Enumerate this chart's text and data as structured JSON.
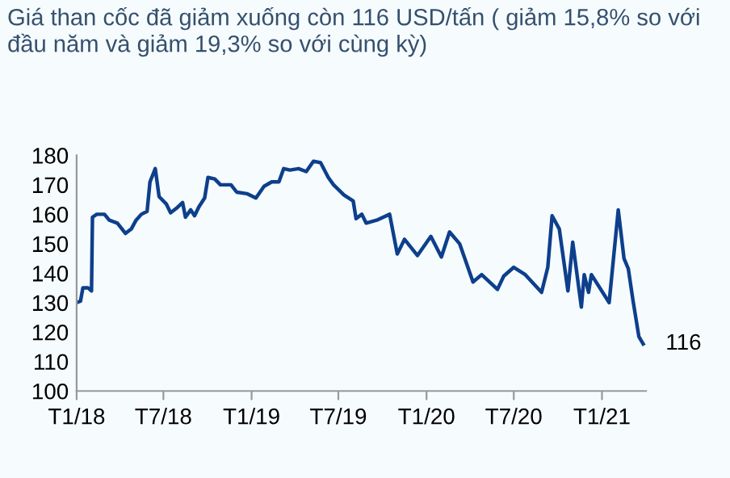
{
  "chart_data": {
    "type": "line",
    "title": "Giá than cốc đã giảm xuống còn 116 USD/tấn ( giảm 15,8% so với đầu năm và giảm 19,3% so với cùng kỳ)",
    "series": [
      {
        "color": "#0d3f8c",
        "x": [
          "2018-01-01",
          "2018-01-09",
          "2018-01-14",
          "2018-01-25",
          "2018-02-01",
          "2018-02-03",
          "2018-02-12",
          "2018-02-28",
          "2018-03-10",
          "2018-03-27",
          "2018-04-13",
          "2018-04-25",
          "2018-05-05",
          "2018-05-16",
          "2018-05-28",
          "2018-06-03",
          "2018-06-14",
          "2018-06-22",
          "2018-07-07",
          "2018-07-16",
          "2018-07-28",
          "2018-08-10",
          "2018-08-16",
          "2018-08-27",
          "2018-09-04",
          "2018-09-13",
          "2018-09-25",
          "2018-10-02",
          "2018-10-16",
          "2018-10-28",
          "2018-11-19",
          "2018-12-01",
          "2018-12-22",
          "2019-01-10",
          "2019-01-27",
          "2019-02-12",
          "2019-02-27",
          "2019-03-09",
          "2019-03-22",
          "2019-04-09",
          "2019-04-25",
          "2019-05-10",
          "2019-05-25",
          "2019-06-10",
          "2019-06-21",
          "2019-07-13",
          "2019-08-01",
          "2019-08-07",
          "2019-08-19",
          "2019-08-28",
          "2019-09-19",
          "2019-10-16",
          "2019-11-01",
          "2019-11-16",
          "2019-12-13",
          "2020-01-10",
          "2020-02-01",
          "2020-02-18",
          "2020-03-10",
          "2020-04-07",
          "2020-04-25",
          "2020-05-28",
          "2020-06-10",
          "2020-07-01",
          "2020-07-25",
          "2020-08-28",
          "2020-09-10",
          "2020-09-19",
          "2020-10-04",
          "2020-10-22",
          "2020-11-01",
          "2020-11-19",
          "2020-11-25",
          "2020-12-04",
          "2020-12-10",
          "2021-01-16",
          "2021-02-04",
          "2021-02-16",
          "2021-02-25",
          "2021-03-07",
          "2021-03-19",
          "2021-03-28"
        ],
        "values": [
          130,
          130.5,
          135,
          135,
          134,
          159,
          160,
          160,
          158,
          157,
          153.5,
          155,
          158,
          160,
          161,
          171,
          175.5,
          166,
          163.5,
          160.5,
          162,
          164,
          159,
          161.5,
          159.5,
          162.5,
          165.5,
          172.5,
          172,
          170,
          170,
          167.5,
          167,
          165.5,
          169.5,
          171,
          171,
          175.5,
          175,
          175.5,
          174.5,
          178,
          177.5,
          172.5,
          170,
          166.5,
          164.5,
          158.5,
          160,
          157,
          158,
          160,
          146.5,
          151.5,
          146,
          152.5,
          145.5,
          154,
          150,
          137,
          139.5,
          134.5,
          139,
          142,
          139.5,
          133.5,
          142,
          159.5,
          155,
          134,
          150.5,
          128.5,
          139.5,
          133.5,
          139.5,
          130,
          161.5,
          145,
          141.5,
          130.5,
          118.5,
          116
        ]
      }
    ],
    "xlim": [
      "2018-01-01",
      "2021-04-03"
    ],
    "xticks": [
      {
        "value": "2018-01-01",
        "label": "T1/18"
      },
      {
        "value": "2018-07-01",
        "label": "T7/18"
      },
      {
        "value": "2019-01-01",
        "label": "T1/19"
      },
      {
        "value": "2019-07-01",
        "label": "T7/19"
      },
      {
        "value": "2020-01-01",
        "label": "T1/20"
      },
      {
        "value": "2020-07-01",
        "label": "T7/20"
      },
      {
        "value": "2021-01-01",
        "label": "T1/21"
      }
    ],
    "ylim": [
      100,
      180
    ],
    "yticks": [
      100,
      110,
      120,
      130,
      140,
      150,
      160,
      170,
      180
    ],
    "grid": false,
    "annotations": [
      {
        "text": "116",
        "x": "2021-03-28",
        "y": 116
      }
    ]
  }
}
